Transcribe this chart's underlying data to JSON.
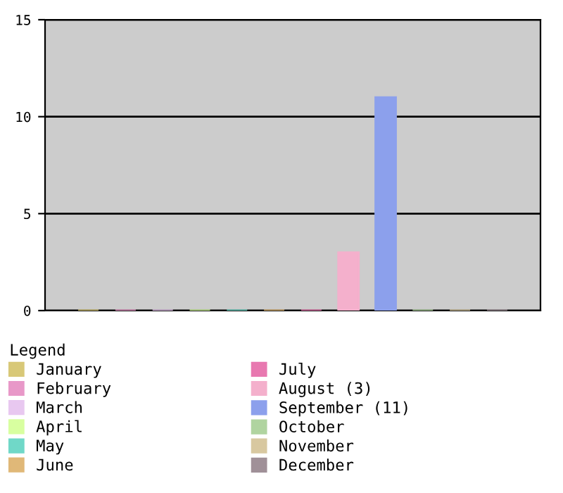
{
  "chart_data": {
    "type": "bar",
    "legend_title": "Legend",
    "categories": [
      null
    ],
    "series": [
      {
        "name": "January",
        "color": "#d8c878",
        "values": [
          0
        ]
      },
      {
        "name": "February",
        "color": "#e898c8",
        "values": [
          0
        ]
      },
      {
        "name": "March",
        "color": "#e8c8f0",
        "values": [
          0
        ]
      },
      {
        "name": "April",
        "color": "#d8ffa0",
        "values": [
          0
        ]
      },
      {
        "name": "May",
        "color": "#70d8c8",
        "values": [
          0
        ]
      },
      {
        "name": "June",
        "color": "#e0b878",
        "values": [
          0
        ]
      },
      {
        "name": "July",
        "color": "#e878b0",
        "values": [
          0
        ]
      },
      {
        "name": "August (3)",
        "color": "#f4b0cc",
        "values": [
          3
        ]
      },
      {
        "name": "September (11)",
        "color": "#8ca0ec",
        "values": [
          11
        ]
      },
      {
        "name": "October",
        "color": "#b0d4a0",
        "values": [
          0
        ]
      },
      {
        "name": "November",
        "color": "#d8c8a0",
        "values": [
          0
        ]
      },
      {
        "name": "December",
        "color": "#a09098",
        "values": [
          0
        ]
      }
    ],
    "ylim": [
      0,
      15
    ],
    "yticks": [
      0,
      5,
      10,
      15
    ],
    "grid": "y",
    "legend": "bottom"
  }
}
